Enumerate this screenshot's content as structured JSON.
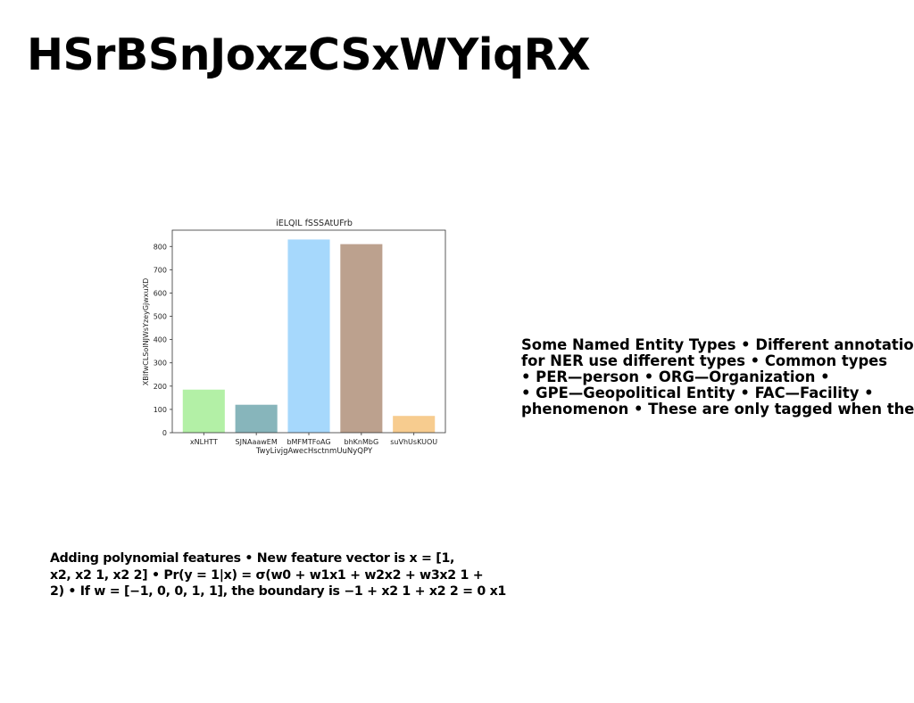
{
  "slide": {
    "title": "HSrBSnJoxzCSxWYiqRX",
    "right_text_lines": [
      "Some Named Entity Types • Different annotation",
      "for NER use different types • Common types",
      "• PER—person • ORG—Organization •",
      "• GPE—Geopolitical Entity • FAC—Facility •",
      "phenomenon • These are only tagged when they"
    ],
    "left_text_lines": [
      "Adding polynomial features • New feature vector is x = [1,",
      "x2, x2 1, x2 2] • Pr(y = 1|x) = σ(w0 + w1x1 + w2x2 + w3x2 1 +",
      "2) • If w = [−1, 0, 0, 1, 1], the boundary is −1 + x2 1 + x2 2 = 0 x1"
    ]
  },
  "chart_data": {
    "type": "bar",
    "title": "iELQIL fSSSAtUFrb",
    "xlabel": "TwyLivjgAwecHsctnmUuNyQPY",
    "ylabel": "XBIfwCLSoINJWsYzeyGjwxuXD",
    "categories": [
      "xNLHTT",
      "SJNAaawEM",
      "bMFMTFoAG",
      "bhKnMbG",
      "suVhUsKUOU"
    ],
    "values": [
      185,
      120,
      830,
      810,
      72
    ],
    "colors": [
      "#b3f0a6",
      "#87b5bb",
      "#a6d8fc",
      "#bca18e",
      "#f7cc8f"
    ],
    "ylim": [
      0,
      870
    ],
    "yticks": [
      0,
      100,
      200,
      300,
      400,
      500,
      600,
      700,
      800
    ],
    "grid": false
  }
}
